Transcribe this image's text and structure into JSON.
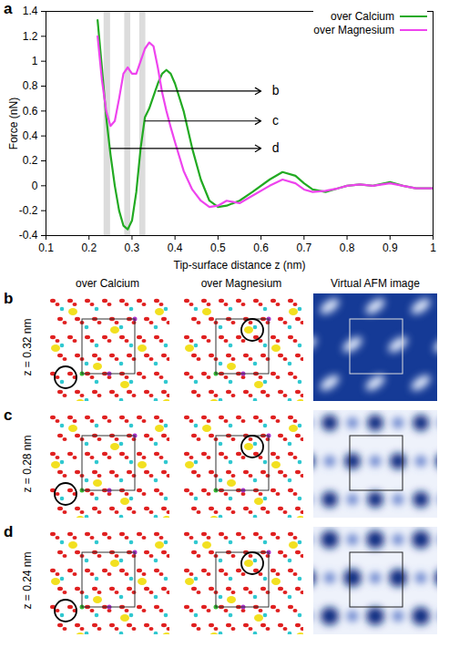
{
  "chart_data": {
    "type": "line",
    "panel": "a",
    "x_label": "Tip-surface distance z (nm)",
    "y_label": "Force (nN)",
    "x": [
      0.22,
      0.23,
      0.24,
      0.25,
      0.26,
      0.27,
      0.28,
      0.29,
      0.3,
      0.31,
      0.32,
      0.33,
      0.34,
      0.35,
      0.36,
      0.37,
      0.38,
      0.39,
      0.4,
      0.42,
      0.44,
      0.46,
      0.48,
      0.5,
      0.52,
      0.55,
      0.58,
      0.62,
      0.65,
      0.68,
      0.7,
      0.72,
      0.75,
      0.78,
      0.8,
      0.83,
      0.86,
      0.9,
      0.93,
      0.96,
      1.0
    ],
    "series": [
      {
        "name": "over Calcium",
        "color": "#22aa22",
        "values": [
          1.33,
          0.95,
          0.55,
          0.25,
          0.0,
          -0.2,
          -0.32,
          -0.35,
          -0.28,
          -0.05,
          0.3,
          0.55,
          0.62,
          0.72,
          0.82,
          0.9,
          0.93,
          0.9,
          0.82,
          0.6,
          0.3,
          0.05,
          -0.12,
          -0.17,
          -0.16,
          -0.12,
          -0.05,
          0.05,
          0.11,
          0.08,
          0.02,
          -0.03,
          -0.05,
          -0.02,
          0.0,
          0.01,
          0.0,
          0.03,
          0.0,
          -0.02,
          -0.02
        ]
      },
      {
        "name": "over Magnesium",
        "color": "#ee44ee",
        "values": [
          1.2,
          0.85,
          0.6,
          0.48,
          0.52,
          0.7,
          0.9,
          0.95,
          0.9,
          0.9,
          1.0,
          1.1,
          1.15,
          1.12,
          0.95,
          0.75,
          0.6,
          0.47,
          0.35,
          0.12,
          -0.03,
          -0.12,
          -0.17,
          -0.16,
          -0.12,
          -0.14,
          -0.08,
          0.0,
          0.05,
          0.02,
          -0.03,
          -0.05,
          -0.04,
          -0.02,
          0.0,
          0.01,
          0.0,
          0.02,
          0.0,
          -0.02,
          -0.02
        ]
      }
    ],
    "xlim": [
      0.1,
      1
    ],
    "xticks": [
      0.1,
      0.2,
      0.3,
      0.4,
      0.5,
      0.6,
      0.7,
      0.8,
      0.9,
      1
    ],
    "ylim": [
      -0.4,
      1.4
    ],
    "yticks": [
      -0.4,
      -0.2,
      0,
      0.2,
      0.4,
      0.6,
      0.8,
      1,
      1.2,
      1.4
    ],
    "bands": [
      [
        0.235,
        0.25
      ],
      [
        0.283,
        0.297
      ],
      [
        0.318,
        0.332
      ]
    ],
    "annotations": [
      {
        "text": "b",
        "x": 0.36,
        "y": 0.76,
        "x2": 0.6
      },
      {
        "text": "c",
        "x": 0.33,
        "y": 0.52,
        "x2": 0.6
      },
      {
        "text": "d",
        "x": 0.25,
        "y": 0.3,
        "x2": 0.6
      }
    ],
    "legend": "upper right"
  },
  "image_panels": {
    "columns": [
      "over Calcium",
      "over Magnesium",
      "Virtual AFM image"
    ],
    "rows": [
      {
        "label": "b",
        "z": "z = 0.32 nm"
      },
      {
        "label": "c",
        "z": "z = 0.28 nm"
      },
      {
        "label": "d",
        "z": "z = 0.24 nm"
      }
    ]
  }
}
